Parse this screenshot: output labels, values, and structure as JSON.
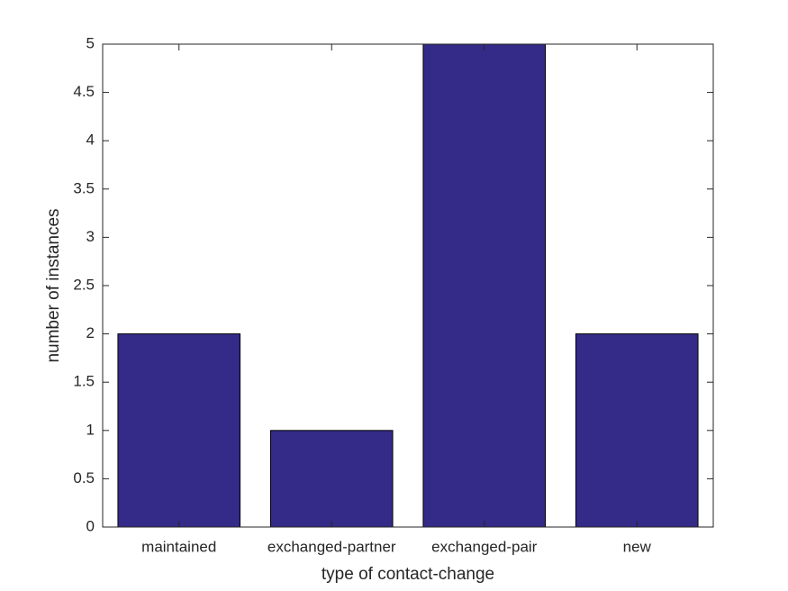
{
  "chart_data": {
    "type": "bar",
    "x_label": "type of contact-change",
    "y_label": "number of instances",
    "categories": [
      "maintained",
      "exchanged-partner",
      "exchanged-pair",
      "new"
    ],
    "values": [
      2,
      1,
      5,
      2
    ],
    "color": "#342a87",
    "ylim": [
      0,
      5
    ],
    "yticks": [
      0,
      0.5,
      1,
      1.5,
      2,
      2.5,
      3,
      3.5,
      4,
      4.5,
      5
    ],
    "grid": false
  }
}
